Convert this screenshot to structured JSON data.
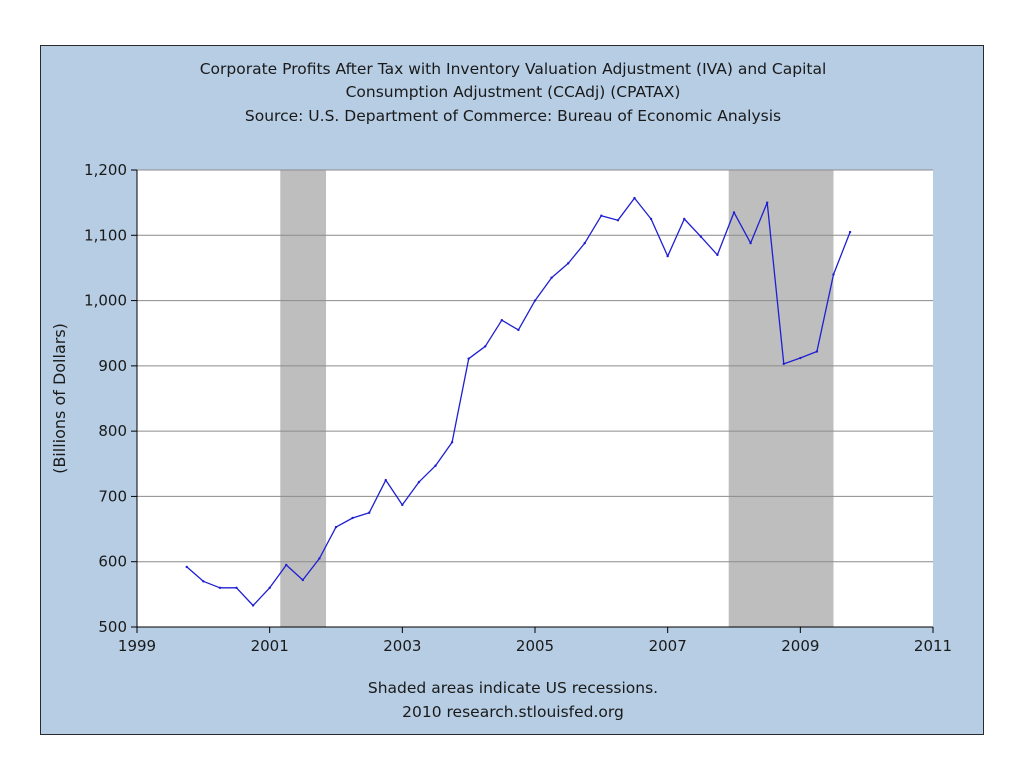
{
  "chart_data": {
    "type": "line",
    "title": [
      "Corporate Profits After Tax with Inventory Valuation Adjustment (IVA) and Capital",
      "Consumption Adjustment (CCAdj) (CPATAX)",
      "Source: U.S. Department of Commerce: Bureau of Economic Analysis"
    ],
    "ylabel": "(Billions of Dollars)",
    "xlabel": "",
    "footnote": [
      "Shaded areas indicate US recessions.",
      "2010 research.stlouisfed.org"
    ],
    "xlim": [
      1999,
      2011
    ],
    "ylim": [
      500,
      1200
    ],
    "x_ticks": [
      1999,
      2001,
      2003,
      2005,
      2007,
      2009,
      2011
    ],
    "x_tick_labels": [
      "1999",
      "2001",
      "2003",
      "2005",
      "2007",
      "2009",
      "2011"
    ],
    "y_ticks": [
      500,
      600,
      700,
      800,
      900,
      1000,
      1100,
      1200
    ],
    "y_tick_labels": [
      "500",
      "600",
      "700",
      "800",
      "900",
      "1,000",
      "1,100",
      "1,200"
    ],
    "grid": true,
    "recessions": [
      [
        2001.16,
        2001.85
      ],
      [
        2007.92,
        2009.5
      ]
    ],
    "series": [
      {
        "name": "CPATAX",
        "color": "#1f1fd2",
        "x": [
          1999.75,
          2000.0,
          2000.25,
          2000.5,
          2000.75,
          2001.0,
          2001.25,
          2001.5,
          2001.75,
          2002.0,
          2002.25,
          2002.5,
          2002.75,
          2003.0,
          2003.25,
          2003.5,
          2003.75,
          2004.0,
          2004.25,
          2004.5,
          2004.75,
          2005.0,
          2005.25,
          2005.5,
          2005.75,
          2006.0,
          2006.25,
          2006.5,
          2006.75,
          2007.0,
          2007.25,
          2007.5,
          2007.75,
          2008.0,
          2008.25,
          2008.5,
          2008.75,
          2009.0,
          2009.25,
          2009.5,
          2009.75
        ],
        "y": [
          592,
          570,
          560,
          560,
          533,
          560,
          595,
          572,
          605,
          653,
          667,
          675,
          725,
          687,
          722,
          747,
          783,
          911,
          930,
          970,
          955,
          1000,
          1035,
          1057,
          1088,
          1130,
          1123,
          1157,
          1125,
          1068,
          1125,
          1098,
          1070,
          1135,
          1088,
          1150,
          903,
          912,
          922,
          1040,
          1105
        ]
      }
    ],
    "colors": {
      "frame_background": "#b6cde4",
      "plot_background": "#ffffff",
      "recession_shade": "#bebebe",
      "grid": "#8c8c8c"
    }
  }
}
